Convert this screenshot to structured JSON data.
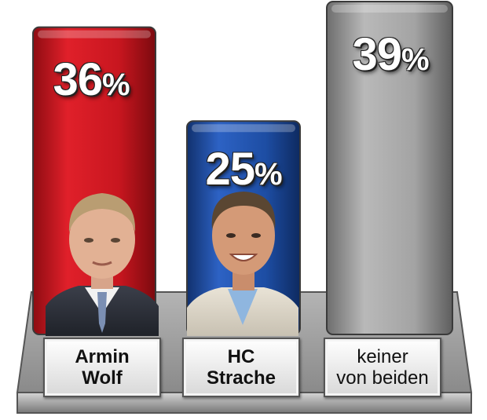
{
  "chart_data": {
    "type": "bar",
    "categories": [
      {
        "line1": "Armin",
        "line2": "Wolf",
        "bold": true
      },
      {
        "line1": "HC",
        "line2": "Strache",
        "bold": true
      },
      {
        "line1": "keiner",
        "line2": "von beiden",
        "bold": false
      }
    ],
    "values": [
      36,
      25,
      39
    ],
    "value_labels": [
      {
        "number": "36",
        "unit": "%"
      },
      {
        "number": "25",
        "unit": "%"
      },
      {
        "number": "39",
        "unit": "%"
      }
    ],
    "bar_colors": [
      "#cc1a22",
      "#1f4fa8",
      "#9a9a9a"
    ],
    "ylim": [
      0,
      39
    ],
    "grid": false,
    "legend": "none"
  },
  "images": {
    "portrait_1": "portrait-armin-wolf",
    "portrait_2": "portrait-hc-strache"
  }
}
